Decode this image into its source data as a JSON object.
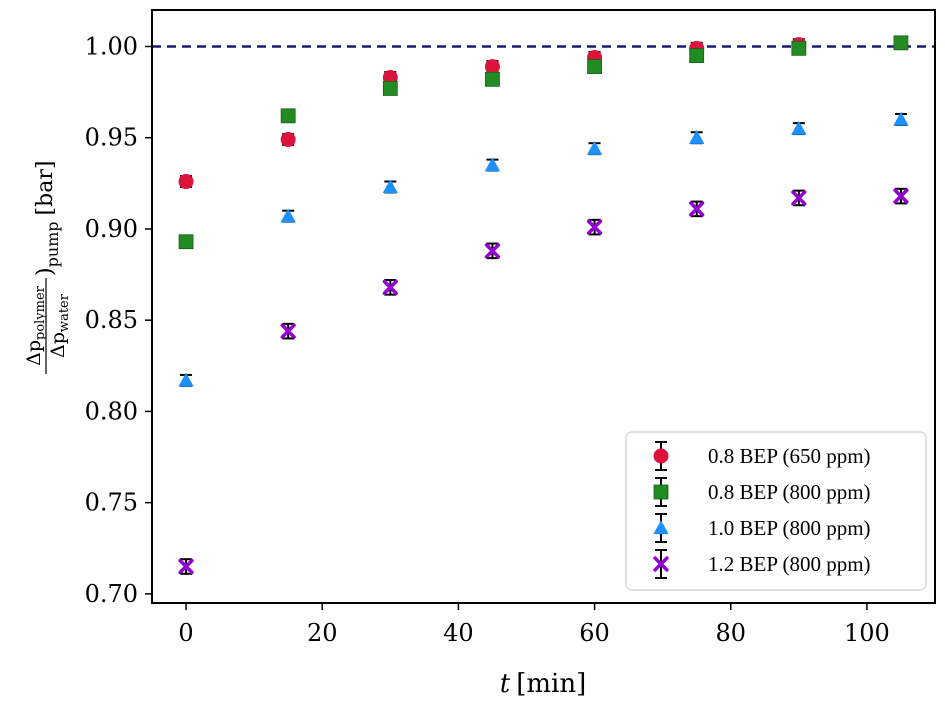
{
  "chart_data": {
    "type": "scatter",
    "xlabel_italic": "t",
    "xlabel_unit": "[min]",
    "ylabel_num": "Δp",
    "ylabel_num_sub": "polymer",
    "ylabel_den": "Δp",
    "ylabel_den_sub": "water",
    "ylabel_tail_sub": "pump",
    "ylabel_unit": "[bar]",
    "xlim": [
      -5,
      110
    ],
    "ylim": [
      0.695,
      1.02
    ],
    "xticks": [
      0,
      20,
      40,
      60,
      80,
      100
    ],
    "xtick_labels": [
      "0",
      "20",
      "40",
      "60",
      "80",
      "100"
    ],
    "yticks": [
      0.7,
      0.75,
      0.8,
      0.85,
      0.9,
      0.95,
      1.0
    ],
    "ytick_labels": [
      "0.70",
      "0.75",
      "0.80",
      "0.85",
      "0.90",
      "0.95",
      "1.00"
    ],
    "reference_line": {
      "y": 1.0,
      "style": "dashed",
      "color": "#191970"
    },
    "legend_position": "bottom-right",
    "error_bar_color": "#000000",
    "series": [
      {
        "name": "0.8 BEP (650 ppm)",
        "marker": "circle",
        "color": "#dc143c",
        "x": [
          0,
          15,
          30,
          45,
          60,
          75,
          90
        ],
        "y": [
          0.926,
          0.949,
          0.983,
          0.989,
          0.994,
          0.999,
          1.001
        ],
        "yerr": [
          0.003,
          0.003,
          0.003,
          0.003,
          0.003,
          0.003,
          0.003
        ]
      },
      {
        "name": "0.8 BEP (800 ppm)",
        "marker": "square",
        "color": "#228b22",
        "x": [
          0,
          15,
          30,
          45,
          60,
          75,
          90,
          105
        ],
        "y": [
          0.893,
          0.962,
          0.977,
          0.982,
          0.989,
          0.995,
          0.999,
          1.002
        ],
        "yerr": [
          0.0,
          0.0,
          0.0,
          0.0,
          0.0,
          0.0,
          0.0,
          0.0
        ]
      },
      {
        "name": "1.0 BEP (800 ppm)",
        "marker": "triangle",
        "color": "#1e90ff",
        "x": [
          0,
          15,
          30,
          45,
          60,
          75,
          90,
          105
        ],
        "y": [
          0.817,
          0.907,
          0.923,
          0.935,
          0.944,
          0.95,
          0.955,
          0.96
        ],
        "yerr": [
          0.003,
          0.003,
          0.003,
          0.003,
          0.003,
          0.003,
          0.003,
          0.003
        ]
      },
      {
        "name": "1.2 BEP (800 ppm)",
        "marker": "x",
        "color": "#9400d3",
        "x": [
          0,
          15,
          30,
          45,
          60,
          75,
          90,
          105
        ],
        "y": [
          0.715,
          0.844,
          0.868,
          0.888,
          0.901,
          0.911,
          0.917,
          0.918
        ],
        "yerr": [
          0.004,
          0.004,
          0.004,
          0.004,
          0.004,
          0.004,
          0.004,
          0.004
        ]
      }
    ]
  }
}
